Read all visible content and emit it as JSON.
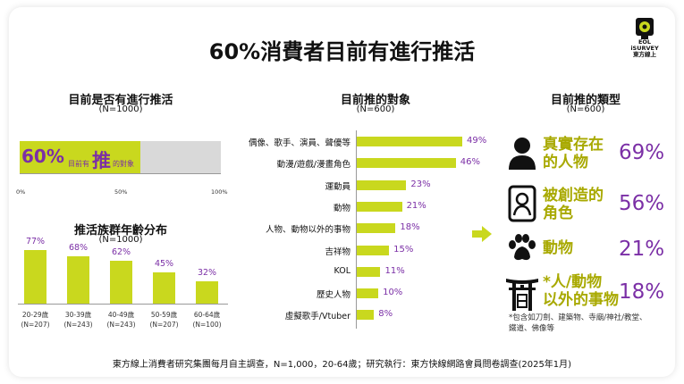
{
  "title": "60%消費者目前有進行推活",
  "logo": {
    "text_line1": "EOL",
    "text_line2": "iSURVEY",
    "text_line3": "東方線上"
  },
  "colors": {
    "accent": "#c9d81e",
    "purple": "#7b2fa6",
    "olive": "#a8a900",
    "gray": "#d9d9d9"
  },
  "section1": {
    "title": "目前是否有進行推活",
    "sample": "(N=1000)",
    "value": 60,
    "value_label": "60%",
    "inner_prefix": "目前有",
    "inner_big": "推",
    "inner_suffix": "的對象",
    "ticks": [
      "0%",
      "50%",
      "100%"
    ]
  },
  "section2": {
    "title": "推活族群年齡分布",
    "sample": "(N=1000)"
  },
  "section3": {
    "title": "目前推的對象",
    "sample": "(N=600)"
  },
  "section4": {
    "title": "目前推的類型",
    "sample": "(N=600)",
    "items": [
      {
        "label_line1": "真實存在",
        "label_line2": "的人物",
        "value": "69%",
        "icon": "person-icon"
      },
      {
        "label_line1": "被創造的",
        "label_line2": "角色",
        "value": "56%",
        "icon": "character-icon"
      },
      {
        "label_line1": "動物",
        "label_line2": "",
        "value": "21%",
        "icon": "paw-icon"
      },
      {
        "label_line1": "*人/動物",
        "label_line2": "以外的事物",
        "value": "18%",
        "icon": "shrine-icon"
      }
    ],
    "note_line1": "*包含如刀劍、建築物、寺廟/神社/教堂、",
    "note_line2": "鐵道、佛像等"
  },
  "footer": "東方線上消費者研究集團每月自主調查，N=1,000，20-64歲；研究執行：東方快線網路會員問卷調查(2025年1月)",
  "chart_data": [
    {
      "type": "bar",
      "title": "目前是否有進行推活",
      "categories": [
        "目前有推的對象"
      ],
      "values": [
        60
      ],
      "xlim": [
        0,
        100
      ],
      "orientation": "horizontal"
    },
    {
      "type": "bar",
      "title": "推活族群年齡分布",
      "categories": [
        "20-29歲",
        "30-39歲",
        "40-49歲",
        "50-59歲",
        "60-64歲"
      ],
      "sample_sizes": [
        "(N=207)",
        "(N=243)",
        "(N=243)",
        "(N=207)",
        "(N=100)"
      ],
      "values": [
        77,
        68,
        62,
        45,
        32
      ],
      "value_labels": [
        "77%",
        "68%",
        "62%",
        "45%",
        "32%"
      ],
      "ylim": [
        0,
        100
      ]
    },
    {
      "type": "bar",
      "title": "目前推的對象",
      "orientation": "horizontal",
      "categories": [
        "偶像、歌手、演員、聲優等",
        "動漫/遊戲/漫畫角色",
        "運動員",
        "動物",
        "人物、動物以外的事物",
        "吉祥物",
        "KOL",
        "歷史人物",
        "虛擬歌手/Vtuber"
      ],
      "values": [
        49,
        46,
        23,
        21,
        18,
        15,
        11,
        10,
        8
      ],
      "value_labels": [
        "49%",
        "46%",
        "23%",
        "21%",
        "18%",
        "15%",
        "11%",
        "10%",
        "8%"
      ],
      "xlim": [
        0,
        50
      ]
    }
  ]
}
